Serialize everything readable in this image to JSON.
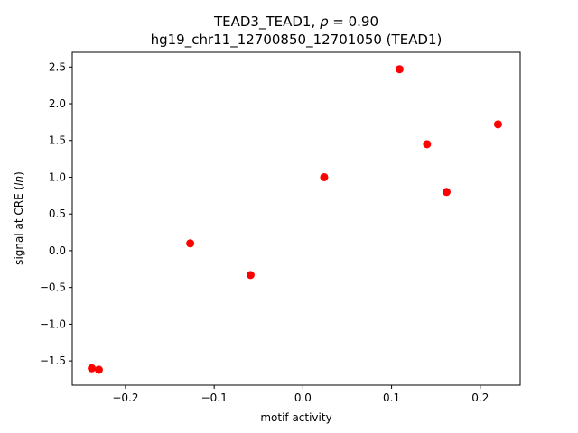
{
  "chart_data": {
    "type": "scatter",
    "title_line1": "TEAD3_TEAD1, ρ = 0.90",
    "title_line2": "hg19_chr11_12700850_12701050 (TEAD1)",
    "xlabel": "motif activity",
    "ylabel": "signal at CRE (ln)",
    "xlim": [
      -0.26,
      0.245
    ],
    "ylim": [
      -1.83,
      2.7
    ],
    "xticks": [
      -0.2,
      -0.1,
      0.0,
      0.1,
      0.2
    ],
    "xtick_labels": [
      "−0.2",
      "−0.1",
      "0.0",
      "0.1",
      "0.2"
    ],
    "yticks": [
      -1.5,
      -1.0,
      -0.5,
      0.0,
      0.5,
      1.0,
      1.5,
      2.0,
      2.5
    ],
    "ytick_labels": [
      "−1.5",
      "−1.0",
      "−0.5",
      "0.0",
      "0.5",
      "1.0",
      "1.5",
      "2.0",
      "2.5"
    ],
    "marker_color": "#ff0000",
    "grid": false,
    "points": [
      {
        "x": -0.238,
        "y": -1.6
      },
      {
        "x": -0.23,
        "y": -1.62
      },
      {
        "x": -0.127,
        "y": 0.1
      },
      {
        "x": -0.059,
        "y": -0.33
      },
      {
        "x": 0.024,
        "y": 1.0
      },
      {
        "x": 0.109,
        "y": 2.47
      },
      {
        "x": 0.14,
        "y": 1.45
      },
      {
        "x": 0.162,
        "y": 0.8
      },
      {
        "x": 0.22,
        "y": 1.72
      }
    ]
  }
}
